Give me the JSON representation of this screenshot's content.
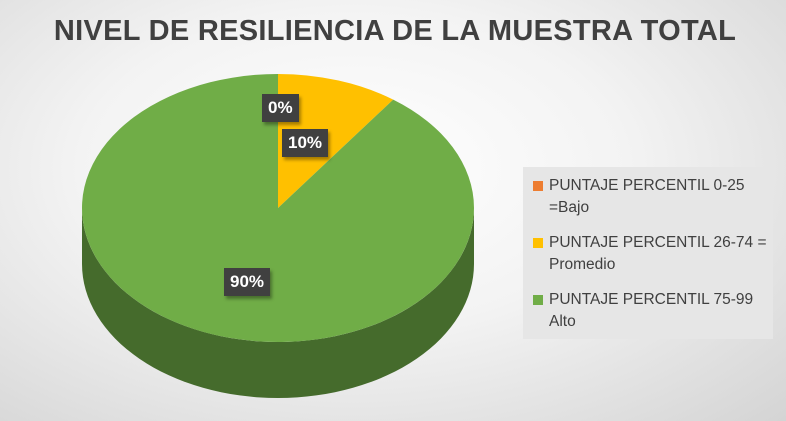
{
  "chart_data": {
    "type": "pie",
    "style": "3d",
    "title": "NIVEL DE RESILIENCIA DE LA MUESTRA TOTAL",
    "categories": [
      "PUNTAJE PERCENTIL 0-25 =Bajo",
      "PUNTAJE PERCENTIL 26-74 = Promedio",
      "PUNTAJE PERCENTIL 75-99 Alto"
    ],
    "values": [
      0,
      10,
      90
    ],
    "data_labels": [
      "0%",
      "10%",
      "90%"
    ],
    "colors": [
      "#ED7D31",
      "#FFC000",
      "#70AD47"
    ],
    "legend_position": "right"
  }
}
